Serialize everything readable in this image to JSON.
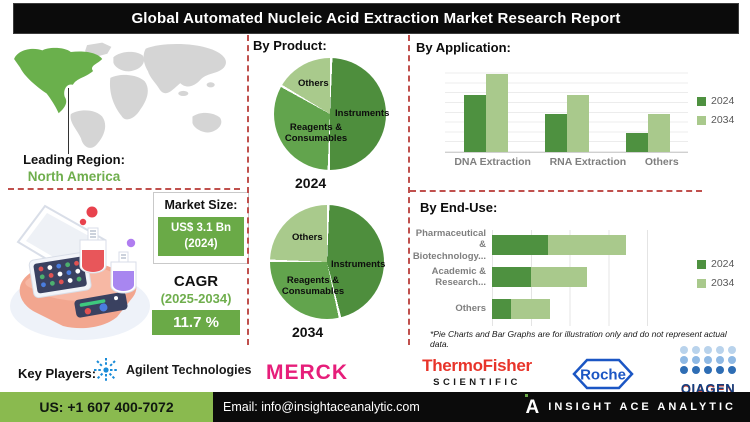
{
  "title": "Global Automated Nucleic Acid Extraction Market Research Report",
  "region": {
    "label": "Leading Region:",
    "value": "North America"
  },
  "market_size": {
    "label": "Market Size:",
    "value": "US$ 3.1 Bn",
    "year": "(2024)"
  },
  "cagr": {
    "label": "CAGR",
    "period": "(2025-2034)",
    "value": "11.7 %"
  },
  "sections": {
    "product": "By Product:",
    "application": "By Application:",
    "end_use": "By End-Use:"
  },
  "footnote": "*Pie Charts and Bar Graphs are for illustration only and do not represent actual data.",
  "key_players": {
    "label": "Key Players:",
    "agilent": "Agilent Technologies",
    "merck": "MERCK",
    "thermo_line1": "ThermoFisher",
    "thermo_line2": "SCIENTIFIC",
    "roche": "Roche",
    "qiagen": "QIAGEN"
  },
  "footer": {
    "phone": "US: +1 607 400-7072",
    "email": "Email: info@insightaceanalytic.com",
    "brand": "INSIGHT ACE ANALYTIC"
  },
  "colors": {
    "accent_green": "#6aaa47",
    "dark_green": "#4e8e3d",
    "mid_green": "#62a44d",
    "light_green": "#a9ca8c",
    "dashed_red": "#c0504d",
    "footer_green": "#8aba4f",
    "map_gray": "#d5d5d5",
    "map_highlight": "#6ab04c"
  },
  "chart_data": [
    {
      "id": "by-product-2024",
      "type": "pie",
      "title": "2024",
      "slices": [
        {
          "label": "Instruments",
          "value": 50,
          "color": "#4e8e3d"
        },
        {
          "label": "Reagents & Consumables",
          "value": 33,
          "color": "#62a44d"
        },
        {
          "label": "Others",
          "value": 17,
          "color": "#a9ca8c"
        }
      ]
    },
    {
      "id": "by-product-2034",
      "type": "pie",
      "title": "2034",
      "slices": [
        {
          "label": "Instruments",
          "value": 46,
          "color": "#4e8e3d"
        },
        {
          "label": "Reagents & Consumables",
          "value": 29,
          "color": "#62a44d"
        },
        {
          "label": "Others",
          "value": 25,
          "color": "#a9ca8c"
        }
      ]
    },
    {
      "id": "by-application",
      "type": "bar",
      "categories": [
        "DNA Extraction",
        "RNA Extraction",
        "Others"
      ],
      "series": [
        {
          "name": "2024",
          "color": "#4e9140",
          "values": [
            55,
            37,
            18
          ]
        },
        {
          "name": "2034",
          "color": "#a9c98c",
          "values": [
            75,
            55,
            37
          ]
        }
      ],
      "ylim": [
        0,
        85
      ],
      "grid": "horizontal",
      "legend_position": "right",
      "note": "illustrative units"
    },
    {
      "id": "by-end-use",
      "type": "stacked-hbar",
      "categories": [
        "Pharmaceutical & Biotechnology...",
        "Academic & Research...",
        "Others"
      ],
      "series": [
        {
          "name": "2024",
          "color": "#4e9140",
          "values": [
            29,
            20,
            10
          ]
        },
        {
          "name": "2034",
          "color": "#a9c98c",
          "values": [
            40,
            29,
            20
          ]
        }
      ],
      "xlim": [
        0,
        100
      ],
      "grid": "vertical",
      "legend_position": "right",
      "note": "illustrative units"
    }
  ]
}
